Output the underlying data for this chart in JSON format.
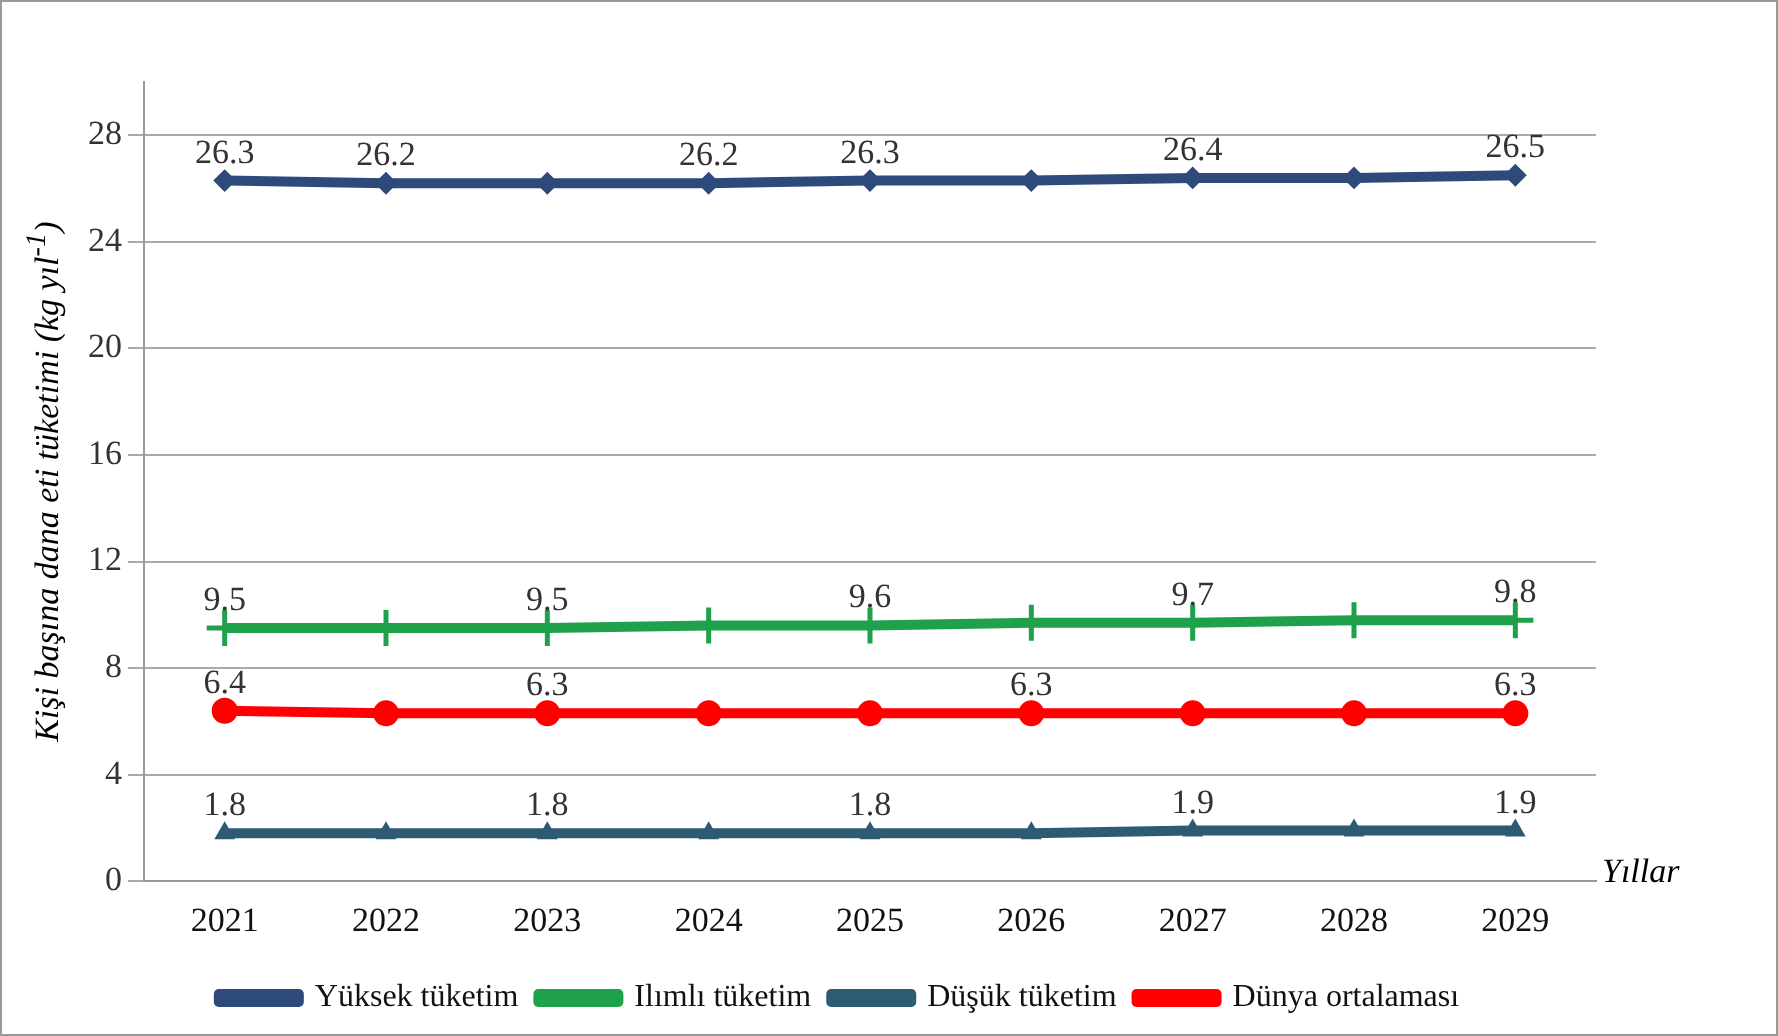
{
  "chart_data": {
    "type": "line",
    "xlabel": "Yıllar",
    "ylabel": "Kişi başına dana eti tüketimi (kg yıl$^{-1}$)",
    "categories": [
      "2021",
      "2022",
      "2023",
      "2024",
      "2025",
      "2026",
      "2027",
      "2028",
      "2029"
    ],
    "series": [
      {
        "name": "Yüksek tüketim",
        "color": "#2e4a7a",
        "marker": "diamond",
        "values": [
          26.3,
          26.2,
          26.2,
          26.2,
          26.3,
          26.3,
          26.4,
          26.4,
          26.5
        ],
        "value_labels": [
          "26.3",
          "26.2",
          null,
          "26.2",
          "26.3",
          null,
          "26.4",
          null,
          "26.5"
        ]
      },
      {
        "name": "Ilımlı tüketim",
        "color": "#1fa04a",
        "marker": "cross",
        "values": [
          9.5,
          9.5,
          9.5,
          9.6,
          9.6,
          9.7,
          9.7,
          9.8,
          9.8
        ],
        "value_labels": [
          "9.5",
          null,
          "9.5",
          null,
          "9.6",
          null,
          "9.7",
          null,
          "9.8"
        ]
      },
      {
        "name": "Düşük tüketim",
        "color": "#2d5b73",
        "marker": "triangle",
        "values": [
          1.8,
          1.8,
          1.8,
          1.8,
          1.8,
          1.8,
          1.9,
          1.9,
          1.9
        ],
        "value_labels": [
          "1.8",
          null,
          "1.8",
          null,
          "1.8",
          null,
          "1.9",
          null,
          "1.9"
        ]
      },
      {
        "name": "Dünya ortalaması",
        "color": "#ff0000",
        "marker": "circle",
        "values": [
          6.4,
          6.3,
          6.3,
          6.3,
          6.3,
          6.3,
          6.3,
          6.3,
          6.3
        ],
        "value_labels": [
          "6.4",
          null,
          "6.3",
          null,
          null,
          "6.3",
          null,
          null,
          "6.3"
        ]
      }
    ],
    "ylim": [
      0,
      30
    ],
    "yticks": [
      0,
      4,
      8,
      12,
      16,
      20,
      24,
      28
    ],
    "grid": "y",
    "legend": "bottom"
  }
}
